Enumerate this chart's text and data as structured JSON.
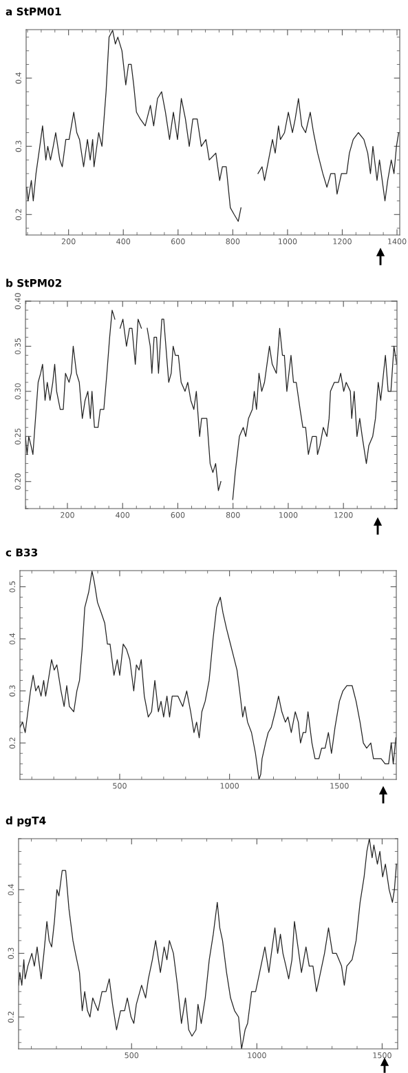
{
  "chart_data": [
    {
      "type": "line",
      "title": "a StPM01",
      "xlim": [
        45,
        1410
      ],
      "ylim": [
        0.17,
        0.471
      ],
      "xticks": [
        200,
        400,
        600,
        800,
        1000,
        1200,
        1400
      ],
      "yticks": [
        0.2,
        0.3,
        0.4
      ],
      "grid": false,
      "x": [
        47,
        52,
        64,
        71,
        81,
        95,
        105,
        117,
        124,
        134,
        144,
        153,
        168,
        177,
        190,
        202,
        219,
        230,
        240,
        255,
        269,
        279,
        288,
        293,
        310,
        322,
        337,
        348,
        361,
        371,
        380,
        395,
        409,
        419,
        429,
        438,
        448,
        462,
        480,
        499,
        511,
        525,
        540,
        554,
        569,
        583,
        598,
        612,
        627,
        641,
        654,
        670,
        685,
        702,
        714,
        738,
        752,
        762,
        776,
        791,
        805,
        820,
        830,
        839,
        863,
        892,
        907,
        916,
        926,
        945,
        955,
        967,
        974,
        989,
        1003,
        1018,
        1028,
        1040,
        1052,
        1066,
        1083,
        1095,
        1110,
        1129,
        1144,
        1158,
        1173,
        1181,
        1197,
        1216,
        1226,
        1240,
        1259,
        1279,
        1293,
        1303,
        1312,
        1327,
        1336,
        1346,
        1356,
        1366,
        1379,
        1389,
        1398,
        1406
      ],
      "series": [
        {
          "color": "#222222",
          "values": [
            0.24,
            0.22,
            0.25,
            0.22,
            0.26,
            0.3,
            0.33,
            0.28,
            0.3,
            0.28,
            0.3,
            0.32,
            0.28,
            0.27,
            0.31,
            0.31,
            0.35,
            0.32,
            0.31,
            0.27,
            0.31,
            0.28,
            0.31,
            0.27,
            0.32,
            0.3,
            0.38,
            0.46,
            0.47,
            0.45,
            0.46,
            0.44,
            0.39,
            0.42,
            0.42,
            0.39,
            0.35,
            0.34,
            0.33,
            0.36,
            0.33,
            0.37,
            0.38,
            0.35,
            0.31,
            0.35,
            0.31,
            0.37,
            0.34,
            0.3,
            0.34,
            0.34,
            0.3,
            0.31,
            0.28,
            0.29,
            0.25,
            0.27,
            0.27,
            0.21,
            0.2,
            0.19,
            0.21,
            null,
            null,
            0.26,
            0.27,
            0.25,
            0.27,
            0.31,
            0.29,
            0.33,
            0.31,
            0.32,
            0.35,
            0.32,
            0.34,
            0.37,
            0.33,
            0.32,
            0.35,
            0.32,
            0.29,
            0.26,
            0.24,
            0.26,
            0.26,
            0.23,
            0.26,
            0.26,
            0.29,
            0.31,
            0.32,
            0.31,
            0.29,
            0.26,
            0.3,
            0.25,
            0.28,
            0.25,
            0.22,
            0.25,
            0.28,
            0.26,
            0.3,
            0.32
          ]
        }
      ],
      "line_style": "solid"
    },
    {
      "type": "line",
      "title": "b StPM02",
      "xlim": [
        48,
        1394
      ],
      "ylim": [
        0.17,
        0.4
      ],
      "xticks": [
        200,
        400,
        600,
        800,
        1000,
        1200
      ],
      "yticks": [
        {
          "value": 0.2,
          "label": "0.20"
        },
        {
          "value": 0.25,
          "label": "0.25"
        },
        {
          "value": 0.3,
          "label": "0.30"
        },
        {
          "value": 0.35,
          "label": "0.35"
        },
        {
          "value": 0.4,
          "label": "0.40"
        }
      ],
      "grid": false,
      "x": [
        48,
        54,
        60,
        68,
        75,
        82,
        94,
        103,
        110,
        119,
        127,
        137,
        147,
        154,
        161,
        174,
        185,
        193,
        206,
        214,
        221,
        233,
        243,
        254,
        264,
        274,
        283,
        289,
        298,
        311,
        319,
        332,
        343,
        353,
        362,
        372,
        385,
        391,
        401,
        414,
        425,
        434,
        446,
        456,
        468,
        477,
        489,
        500,
        506,
        514,
        523,
        530,
        542,
        549,
        567,
        576,
        583,
        591,
        602,
        612,
        626,
        636,
        647,
        658,
        667,
        679,
        686,
        705,
        717,
        727,
        737,
        747,
        756,
        766,
        784,
        799,
        808,
        823,
        837,
        846,
        856,
        870,
        877,
        885,
        894,
        904,
        914,
        923,
        932,
        942,
        957,
        969,
        979,
        986,
        995,
        1010,
        1019,
        1029,
        1043,
        1053,
        1063,
        1073,
        1087,
        1102,
        1106,
        1115,
        1127,
        1140,
        1148,
        1153,
        1167,
        1182,
        1190,
        1201,
        1210,
        1225,
        1230,
        1239,
        1249,
        1259,
        1268,
        1283,
        1292,
        1306,
        1316,
        1326,
        1335,
        1352,
        1362,
        1372,
        1383,
        1393
      ],
      "series": [
        {
          "color": "#222222",
          "values": [
            0.25,
            0.23,
            0.25,
            0.24,
            0.23,
            0.26,
            0.31,
            0.32,
            0.33,
            0.29,
            0.31,
            0.29,
            0.31,
            0.33,
            0.3,
            0.28,
            0.28,
            0.32,
            0.31,
            0.32,
            0.35,
            0.32,
            0.31,
            0.27,
            0.29,
            0.3,
            0.27,
            0.3,
            0.26,
            0.26,
            0.28,
            0.28,
            0.32,
            0.36,
            0.39,
            0.38,
            null,
            0.37,
            0.38,
            0.35,
            0.37,
            0.37,
            0.33,
            0.38,
            0.37,
            null,
            0.37,
            0.35,
            0.32,
            0.36,
            0.36,
            0.32,
            0.38,
            0.38,
            0.31,
            0.32,
            0.35,
            0.34,
            0.34,
            0.31,
            0.3,
            0.31,
            0.29,
            0.28,
            0.3,
            0.25,
            0.27,
            0.27,
            0.22,
            0.21,
            0.22,
            0.19,
            0.2,
            null,
            null,
            0.18,
            0.21,
            0.25,
            0.26,
            0.25,
            0.27,
            0.28,
            0.3,
            0.28,
            0.32,
            0.3,
            0.31,
            0.33,
            0.35,
            0.33,
            0.32,
            0.37,
            0.34,
            0.34,
            0.3,
            0.34,
            0.31,
            0.31,
            0.28,
            0.26,
            0.26,
            0.23,
            0.25,
            0.25,
            0.23,
            0.24,
            0.26,
            0.25,
            0.27,
            0.3,
            0.31,
            0.31,
            0.32,
            0.3,
            0.31,
            0.3,
            0.27,
            0.3,
            0.25,
            0.27,
            0.25,
            0.22,
            0.24,
            0.25,
            0.27,
            0.31,
            0.29,
            0.34,
            0.3,
            0.3,
            0.35,
            0.33
          ]
        }
      ],
      "line_style": "solid"
    },
    {
      "type": "line",
      "title": "c B33",
      "xlim": [
        46,
        1759
      ],
      "ylim": [
        0.13,
        0.531
      ],
      "xticks": [
        500,
        1000,
        1500
      ],
      "yticks": [
        0.2,
        0.3,
        0.4,
        0.5
      ],
      "grid": false,
      "x": [
        46,
        58,
        70,
        82,
        94,
        106,
        118,
        130,
        142,
        154,
        163,
        175,
        190,
        202,
        214,
        233,
        247,
        259,
        271,
        291,
        305,
        317,
        329,
        341,
        359,
        374,
        384,
        399,
        416,
        432,
        444,
        456,
        474,
        489,
        500,
        516,
        531,
        546,
        564,
        576,
        588,
        598,
        612,
        630,
        645,
        660,
        676,
        688,
        700,
        715,
        727,
        739,
        765,
        787,
        805,
        823,
        838,
        850,
        862,
        874,
        889,
        907,
        925,
        941,
        958,
        970,
        986,
        998,
        1016,
        1034,
        1046,
        1060,
        1070,
        1082,
        1100,
        1118,
        1134,
        1142,
        1148,
        1164,
        1176,
        1190,
        1208,
        1223,
        1238,
        1254,
        1266,
        1281,
        1299,
        1313,
        1323,
        1335,
        1347,
        1357,
        1375,
        1389,
        1407,
        1419,
        1435,
        1450,
        1464,
        1480,
        1500,
        1516,
        1534,
        1558,
        1576,
        1594,
        1609,
        1624,
        1643,
        1655,
        1673,
        1690,
        1708,
        1724,
        1736,
        1745,
        1757
      ],
      "series": [
        {
          "color": "#222222",
          "values": [
            0.23,
            0.24,
            0.22,
            0.26,
            0.3,
            0.33,
            0.3,
            0.31,
            0.29,
            0.32,
            0.29,
            0.32,
            0.36,
            0.34,
            0.35,
            0.3,
            0.27,
            0.31,
            0.27,
            0.26,
            0.3,
            0.32,
            0.38,
            0.46,
            0.49,
            0.53,
            0.51,
            0.47,
            0.45,
            0.43,
            0.39,
            0.39,
            0.33,
            0.36,
            0.33,
            0.39,
            0.38,
            0.36,
            0.3,
            0.35,
            0.34,
            0.36,
            0.29,
            0.25,
            0.26,
            0.32,
            0.26,
            0.28,
            0.25,
            0.29,
            0.25,
            0.29,
            0.29,
            0.27,
            0.3,
            0.26,
            0.22,
            0.24,
            0.21,
            0.26,
            0.28,
            0.32,
            0.4,
            0.46,
            0.48,
            0.45,
            0.42,
            0.4,
            0.37,
            0.34,
            0.3,
            0.25,
            0.27,
            0.24,
            0.22,
            0.18,
            0.13,
            0.14,
            0.17,
            0.2,
            0.22,
            0.23,
            0.26,
            0.29,
            0.26,
            0.24,
            0.25,
            0.22,
            0.26,
            0.24,
            0.2,
            0.22,
            0.22,
            0.26,
            0.2,
            0.17,
            0.17,
            0.19,
            0.19,
            0.22,
            0.18,
            0.23,
            0.28,
            0.3,
            0.31,
            0.31,
            0.28,
            0.24,
            0.2,
            0.19,
            0.2,
            0.17,
            0.17,
            0.17,
            0.16,
            0.16,
            0.2,
            0.16,
            0.21
          ]
        }
      ],
      "line_style": "solid"
    },
    {
      "type": "line",
      "title": "d pgT4",
      "xlim": [
        49,
        1562
      ],
      "ylim": [
        0.15,
        0.48
      ],
      "xticks": [
        500,
        1000,
        1500
      ],
      "yticks": [
        0.2,
        0.3,
        0.4
      ],
      "grid": false,
      "x": [
        49,
        54,
        62,
        70,
        75,
        86,
        102,
        112,
        123,
        139,
        150,
        162,
        171,
        181,
        192,
        202,
        210,
        223,
        237,
        250,
        266,
        276,
        292,
        303,
        313,
        324,
        334,
        345,
        355,
        366,
        382,
        398,
        411,
        424,
        440,
        456,
        472,
        483,
        498,
        509,
        519,
        540,
        556,
        567,
        583,
        596,
        615,
        630,
        641,
        651,
        667,
        683,
        699,
        715,
        728,
        741,
        757,
        765,
        778,
        794,
        810,
        826,
        842,
        852,
        863,
        879,
        895,
        911,
        927,
        939,
        953,
        963,
        979,
        995,
        1011,
        1032,
        1048,
        1058,
        1072,
        1083,
        1094,
        1104,
        1116,
        1127,
        1140,
        1150,
        1164,
        1178,
        1196,
        1209,
        1224,
        1238,
        1254,
        1270,
        1286,
        1302,
        1317,
        1338,
        1349,
        1359,
        1380,
        1396,
        1412,
        1428,
        1439,
        1449,
        1460,
        1467,
        1481,
        1491,
        1502,
        1513,
        1528,
        1541,
        1549,
        1557
      ],
      "series": [
        {
          "color": "#222222",
          "values": [
            0.25,
            0.27,
            0.25,
            0.29,
            0.26,
            0.28,
            0.3,
            0.28,
            0.31,
            0.26,
            0.3,
            0.35,
            0.32,
            0.31,
            0.35,
            0.4,
            0.39,
            0.43,
            0.43,
            0.37,
            0.32,
            0.3,
            0.27,
            0.21,
            0.24,
            0.21,
            0.2,
            0.23,
            0.22,
            0.21,
            0.24,
            0.24,
            0.26,
            0.22,
            0.18,
            0.21,
            0.21,
            0.23,
            0.2,
            0.19,
            0.22,
            0.25,
            0.23,
            0.26,
            0.29,
            0.32,
            0.27,
            0.31,
            0.29,
            0.32,
            0.3,
            0.25,
            0.19,
            0.23,
            0.18,
            0.17,
            0.18,
            0.22,
            0.19,
            0.23,
            0.29,
            0.33,
            0.38,
            0.34,
            0.32,
            0.27,
            0.23,
            0.21,
            0.2,
            0.15,
            0.18,
            0.19,
            0.24,
            0.24,
            0.27,
            0.31,
            0.27,
            0.3,
            0.34,
            0.3,
            0.33,
            0.3,
            0.28,
            0.26,
            0.29,
            0.35,
            0.31,
            0.27,
            0.31,
            0.28,
            0.28,
            0.24,
            0.27,
            0.3,
            0.34,
            0.3,
            0.3,
            0.28,
            0.25,
            0.28,
            0.29,
            0.32,
            0.38,
            0.42,
            0.46,
            0.48,
            0.45,
            0.47,
            0.44,
            0.46,
            0.42,
            0.44,
            0.4,
            0.38,
            0.4,
            0.44
          ]
        }
      ],
      "line_style": "solid"
    }
  ]
}
